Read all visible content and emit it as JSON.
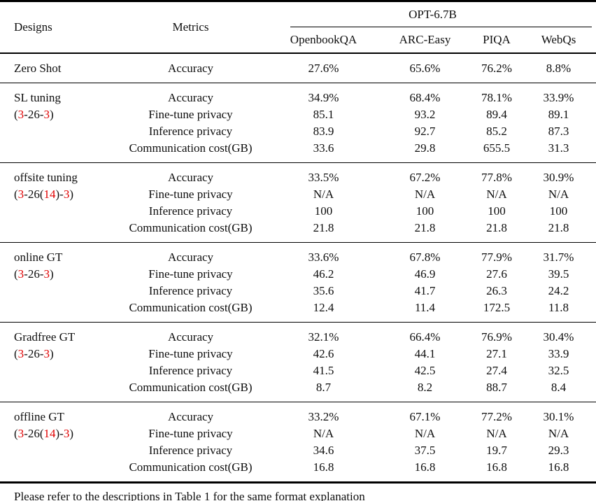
{
  "colors": {
    "accent_red": "#e00000",
    "rule_black": "#000000"
  },
  "header": {
    "designs": "Designs",
    "metrics": "Metrics",
    "model": "OPT-6.7B",
    "datasets": [
      "OpenbookQA",
      "ARC-Easy",
      "PIQA",
      "WebQs"
    ]
  },
  "groups": [
    {
      "design": "Zero Shot",
      "config": [],
      "rows": [
        {
          "metric": "Accuracy",
          "values": [
            "27.6%",
            "65.6%",
            "76.2%",
            "8.8%"
          ]
        }
      ]
    },
    {
      "design": "SL tuning",
      "config": [
        {
          "t": "(",
          "red": false
        },
        {
          "t": "3",
          "red": true
        },
        {
          "t": "-26-",
          "red": false
        },
        {
          "t": "3",
          "red": true
        },
        {
          "t": ")",
          "red": false
        }
      ],
      "rows": [
        {
          "metric": "Accuracy",
          "values": [
            "34.9%",
            "68.4%",
            "78.1%",
            "33.9%"
          ]
        },
        {
          "metric": "Fine-tune privacy",
          "values": [
            "85.1",
            "93.2",
            "89.4",
            "89.1"
          ]
        },
        {
          "metric": "Inference privacy",
          "values": [
            "83.9",
            "92.7",
            "85.2",
            "87.3"
          ]
        },
        {
          "metric": "Communication cost(GB)",
          "values": [
            "33.6",
            "29.8",
            "655.5",
            "31.3"
          ]
        }
      ]
    },
    {
      "design": "offsite tuning",
      "config": [
        {
          "t": "(",
          "red": false
        },
        {
          "t": "3",
          "red": true
        },
        {
          "t": "-26(",
          "red": false
        },
        {
          "t": "14",
          "red": true
        },
        {
          "t": ")-",
          "red": false
        },
        {
          "t": "3",
          "red": true
        },
        {
          "t": ")",
          "red": false
        }
      ],
      "rows": [
        {
          "metric": "Accuracy",
          "values": [
            "33.5%",
            "67.2%",
            "77.8%",
            "30.9%"
          ]
        },
        {
          "metric": "Fine-tune privacy",
          "values": [
            "N/A",
            "N/A",
            "N/A",
            "N/A"
          ]
        },
        {
          "metric": "Inference privacy",
          "values": [
            "100",
            "100",
            "100",
            "100"
          ]
        },
        {
          "metric": "Communication cost(GB)",
          "values": [
            "21.8",
            "21.8",
            "21.8",
            "21.8"
          ]
        }
      ]
    },
    {
      "design": "online GT",
      "config": [
        {
          "t": "(",
          "red": false
        },
        {
          "t": "3",
          "red": true
        },
        {
          "t": "-26-",
          "red": false
        },
        {
          "t": "3",
          "red": true
        },
        {
          "t": ")",
          "red": false
        }
      ],
      "rows": [
        {
          "metric": "Accuracy",
          "values": [
            "33.6%",
            "67.8%",
            "77.9%",
            "31.7%"
          ]
        },
        {
          "metric": "Fine-tune privacy",
          "values": [
            "46.2",
            "46.9",
            "27.6",
            "39.5"
          ]
        },
        {
          "metric": "Inference privacy",
          "values": [
            "35.6",
            "41.7",
            "26.3",
            "24.2"
          ]
        },
        {
          "metric": "Communication cost(GB)",
          "values": [
            "12.4",
            "11.4",
            "172.5",
            "11.8"
          ]
        }
      ]
    },
    {
      "design": "Gradfree GT",
      "config": [
        {
          "t": "(",
          "red": false
        },
        {
          "t": "3",
          "red": true
        },
        {
          "t": "-26-",
          "red": false
        },
        {
          "t": "3",
          "red": true
        },
        {
          "t": ")",
          "red": false
        }
      ],
      "rows": [
        {
          "metric": "Accuracy",
          "values": [
            "32.1%",
            "66.4%",
            "76.9%",
            "30.4%"
          ]
        },
        {
          "metric": "Fine-tune privacy",
          "values": [
            "42.6",
            "44.1",
            "27.1",
            "33.9"
          ]
        },
        {
          "metric": "Inference privacy",
          "values": [
            "41.5",
            "42.5",
            "27.4",
            "32.5"
          ]
        },
        {
          "metric": "Communication cost(GB)",
          "values": [
            "8.7",
            "8.2",
            "88.7",
            "8.4"
          ]
        }
      ]
    },
    {
      "design": "offline GT",
      "config": [
        {
          "t": "(",
          "red": false
        },
        {
          "t": "3",
          "red": true
        },
        {
          "t": "-26(",
          "red": false
        },
        {
          "t": "14",
          "red": true
        },
        {
          "t": ")-",
          "red": false
        },
        {
          "t": "3",
          "red": true
        },
        {
          "t": ")",
          "red": false
        }
      ],
      "rows": [
        {
          "metric": "Accuracy",
          "values": [
            "33.2%",
            "67.1%",
            "77.2%",
            "30.1%"
          ]
        },
        {
          "metric": "Fine-tune privacy",
          "values": [
            "N/A",
            "N/A",
            "N/A",
            "N/A"
          ]
        },
        {
          "metric": "Inference privacy",
          "values": [
            "34.6",
            "37.5",
            "19.7",
            "29.3"
          ]
        },
        {
          "metric": "Communication cost(GB)",
          "values": [
            "16.8",
            "16.8",
            "16.8",
            "16.8"
          ]
        }
      ]
    }
  ],
  "footer": "Please refer to the descriptions in Table 1 for the same format explanation"
}
